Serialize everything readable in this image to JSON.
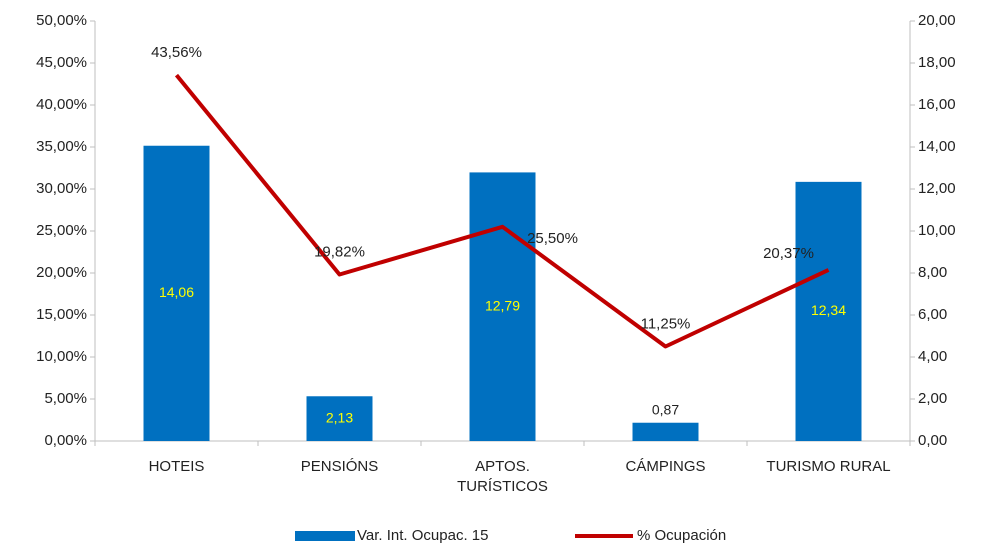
{
  "chart_data": {
    "type": "bar-line",
    "categories": [
      "HOTEIS",
      "PENSIÓNS",
      "APTOS. TURÍSTICOS",
      "CÁMPINGS",
      "TURISMO RURAL"
    ],
    "series": [
      {
        "name": "Var. Int. Ocupac. 15",
        "type": "bar",
        "axis": "y2",
        "color": "#0070c0",
        "values": [
          14.06,
          2.13,
          12.79,
          0.87,
          12.34
        ],
        "value_labels": [
          "14,06",
          "2,13",
          "12,79",
          "0,87",
          "12,34"
        ]
      },
      {
        "name": "% Ocupación",
        "type": "line",
        "axis": "y",
        "color": "#c00000",
        "values": [
          43.56,
          19.82,
          25.5,
          11.25,
          20.37
        ],
        "value_labels": [
          "43,56%",
          "19,82%",
          "25,50%",
          "11,25%",
          "20,37%"
        ]
      }
    ],
    "ylim": [
      0,
      50
    ],
    "yticks": [
      {
        "value": 0,
        "label": "0,00%"
      },
      {
        "value": 5,
        "label": "5,00%"
      },
      {
        "value": 10,
        "label": "10,00%"
      },
      {
        "value": 15,
        "label": "15,00%"
      },
      {
        "value": 20,
        "label": "20,00%"
      },
      {
        "value": 25,
        "label": "25,00%"
      },
      {
        "value": 30,
        "label": "30,00%"
      },
      {
        "value": 35,
        "label": "35,00%"
      },
      {
        "value": 40,
        "label": "40,00%"
      },
      {
        "value": 45,
        "label": "45,00%"
      },
      {
        "value": 50,
        "label": "50,00%"
      }
    ],
    "y2lim": [
      0,
      20
    ],
    "y2ticks": [
      {
        "value": 0,
        "label": "0,00"
      },
      {
        "value": 2,
        "label": "2,00"
      },
      {
        "value": 4,
        "label": "4,00"
      },
      {
        "value": 6,
        "label": "6,00"
      },
      {
        "value": 8,
        "label": "8,00"
      },
      {
        "value": 10,
        "label": "10,00"
      },
      {
        "value": 12,
        "label": "12,00"
      },
      {
        "value": 14,
        "label": "14,00"
      },
      {
        "value": 16,
        "label": "16,00"
      },
      {
        "value": 18,
        "label": "18,00"
      },
      {
        "value": 20,
        "label": "20,00"
      }
    ],
    "grid": false,
    "legend": "bottom"
  }
}
